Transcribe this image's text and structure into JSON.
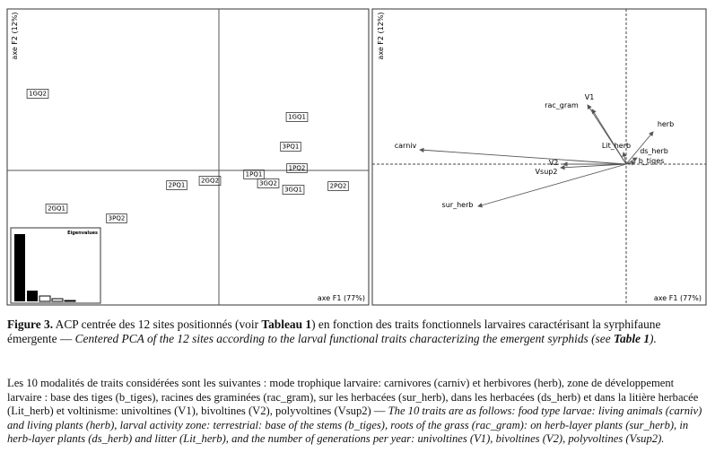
{
  "figure": {
    "left_panel": {
      "y_axis_label": "axe F2 (12%)",
      "x_axis_label": "axe F1 (77%)",
      "inset_title": "Eigenvalues",
      "sites": [
        "1GQ2",
        "1GQ1",
        "3PQ1",
        "1PQ2",
        "1PQ1",
        "3GQ2",
        "3GQ1",
        "2PQ2",
        "2PQ1",
        "2GQ2",
        "2GQ1",
        "3PQ2"
      ]
    },
    "right_panel": {
      "y_axis_label": "axe F2 (12%)",
      "x_axis_label": "axe F1 (77%)",
      "traits": [
        "V1",
        "rac_gram",
        "herb",
        "Lit_herb",
        "ds_herb",
        "b_tiges",
        "carniv",
        "V2",
        "Vsup2",
        "sur_herb"
      ]
    }
  },
  "caption": {
    "paragraph_1": [
      {
        "text": "Figure 3.",
        "style": "bold"
      },
      {
        "text": " ACP centrée des 12 sites positionnés (voir ",
        "style": "normal"
      },
      {
        "text": "Tableau 1",
        "style": "bold"
      },
      {
        "text": ") en fonction des traits fonctionnels larvaires caractérisant la syrphifaune émergente — ",
        "style": "normal"
      },
      {
        "text": "Centered PCA of the 12 sites according to the larval functional traits characterizing the emergent syrphids (see ",
        "style": "italic"
      },
      {
        "text": "Table 1",
        "style": "bold-italic"
      },
      {
        "text": ").",
        "style": "italic"
      }
    ],
    "paragraph_2": [
      {
        "text": "Les 10 modalités de traits considérées sont les suivantes : mode trophique larvaire: carnivores (carniv) et herbivores (herb), zone de développement larvaire : base des tiges (b_tiges), racines des graminées (rac_gram), sur les herbacées (sur_herb), dans les herbacées (ds_herb) et dans la litière herbacée (Lit_herb) et voltinisme: univoltines (V1), bivoltines (V2), polyvoltines (Vsup2) — ",
        "style": "normal"
      },
      {
        "text": "The 10 traits are as follows: food type larvae: living animals (carniv) and living plants (herb), larval activity zone: terrestrial: base of the stems (b_tiges), roots of the grass (rac_gram): on herb-layer plants (sur_herb), in herb-layer plants (ds_herb) and litter (Lit_herb), and the number of generations per year: univoltines (V1), bivoltines (V2), polyvoltines (Vsup2).",
        "style": "italic"
      }
    ]
  }
}
